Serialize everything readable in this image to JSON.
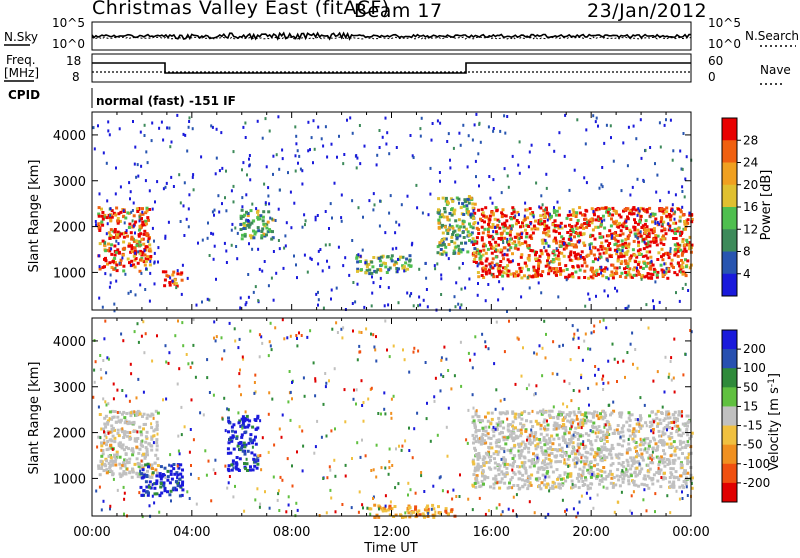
{
  "header": {
    "station": "Christmas Valley East (fitACF)",
    "beam": "Beam 17",
    "date": "23/Jan/2012"
  },
  "strips": {
    "nsky_label": "N.Sky",
    "nsky_ticks": [
      "10^5",
      "10^0"
    ],
    "nsearch_label": "N.Search",
    "nsearch_ticks": [
      "10^5",
      "10^0"
    ],
    "freq_label": "Freq.",
    "freq_unit": "[MHz]",
    "freq_ticks": [
      "18",
      "8"
    ],
    "nave_label": "Nave",
    "nave_ticks": [
      "60",
      "0"
    ],
    "cpid_label": "CPID",
    "cpid_text": "normal (fast) -151 IF"
  },
  "chart_data": [
    {
      "type": "heatmap",
      "name": "power",
      "ylabel": "Slant Range [km]",
      "yticks": [
        "4000",
        "3000",
        "2000",
        "1000"
      ],
      "ylim": [
        180,
        4500
      ],
      "xticks": [
        "00:00",
        "04:00",
        "08:00",
        "12:00",
        "16:00",
        "20:00",
        "00:00"
      ],
      "xlabel": "Time UT",
      "colorbar": {
        "label": "Power [dB]",
        "ticks": [
          "28",
          "24",
          "20",
          "16",
          "12",
          "8",
          "4"
        ],
        "range": [
          0,
          32
        ],
        "colors": [
          "#1a1adb",
          "#2855b0",
          "#3d8a5a",
          "#4fbf4f",
          "#e0c030",
          "#f0a020",
          "#f06010",
          "#e80000"
        ]
      },
      "features": [
        {
          "t0": 0.2,
          "t1": 2.3,
          "r0": 1050,
          "r1": 2450,
          "level": "high"
        },
        {
          "t0": 2.8,
          "t1": 3.6,
          "r0": 700,
          "r1": 1050,
          "level": "high"
        },
        {
          "t0": 15.2,
          "t1": 24.0,
          "r0": 900,
          "r1": 2450,
          "level": "high"
        },
        {
          "t0": 5.9,
          "t1": 7.2,
          "r0": 1750,
          "r1": 2400,
          "level": "mid"
        },
        {
          "t0": 10.5,
          "t1": 12.8,
          "r0": 1000,
          "r1": 1400,
          "level": "mid"
        },
        {
          "t0": 13.8,
          "t1": 15.3,
          "r0": 1400,
          "r1": 2700,
          "level": "mid"
        }
      ]
    },
    {
      "type": "heatmap",
      "name": "velocity",
      "ylabel": "Slant Range [km]",
      "yticks": [
        "4000",
        "3000",
        "2000",
        "1000"
      ],
      "ylim": [
        180,
        4500
      ],
      "xticks": [
        "00:00",
        "04:00",
        "08:00",
        "12:00",
        "16:00",
        "20:00",
        "00:00"
      ],
      "xlabel": "Time UT",
      "colorbar": {
        "label": "Velocity [m s",
        "label_sup": "-1",
        "label_end": "]",
        "ticks": [
          "200",
          "100",
          "50",
          "15",
          "-15",
          "-50",
          "-100",
          "-200"
        ],
        "range": [
          -250,
          250
        ],
        "colors": [
          "#e00000",
          "#f05010",
          "#f09020",
          "#f0c040",
          "#c0c0c0",
          "#60c040",
          "#2f8a3a",
          "#2850b0",
          "#1a1adb"
        ]
      },
      "features": [
        {
          "t0": 0.2,
          "t1": 2.6,
          "r0": 1050,
          "r1": 2500,
          "level": "ground"
        },
        {
          "t0": 1.9,
          "t1": 3.6,
          "r0": 650,
          "r1": 1350,
          "level": "toward"
        },
        {
          "t0": 15.2,
          "t1": 24.0,
          "r0": 800,
          "r1": 2500,
          "level": "ground"
        },
        {
          "t0": 5.4,
          "t1": 6.6,
          "r0": 1200,
          "r1": 2400,
          "level": "toward"
        },
        {
          "t0": 11.0,
          "t1": 14.5,
          "r0": 180,
          "r1": 450,
          "level": "away"
        }
      ]
    }
  ]
}
